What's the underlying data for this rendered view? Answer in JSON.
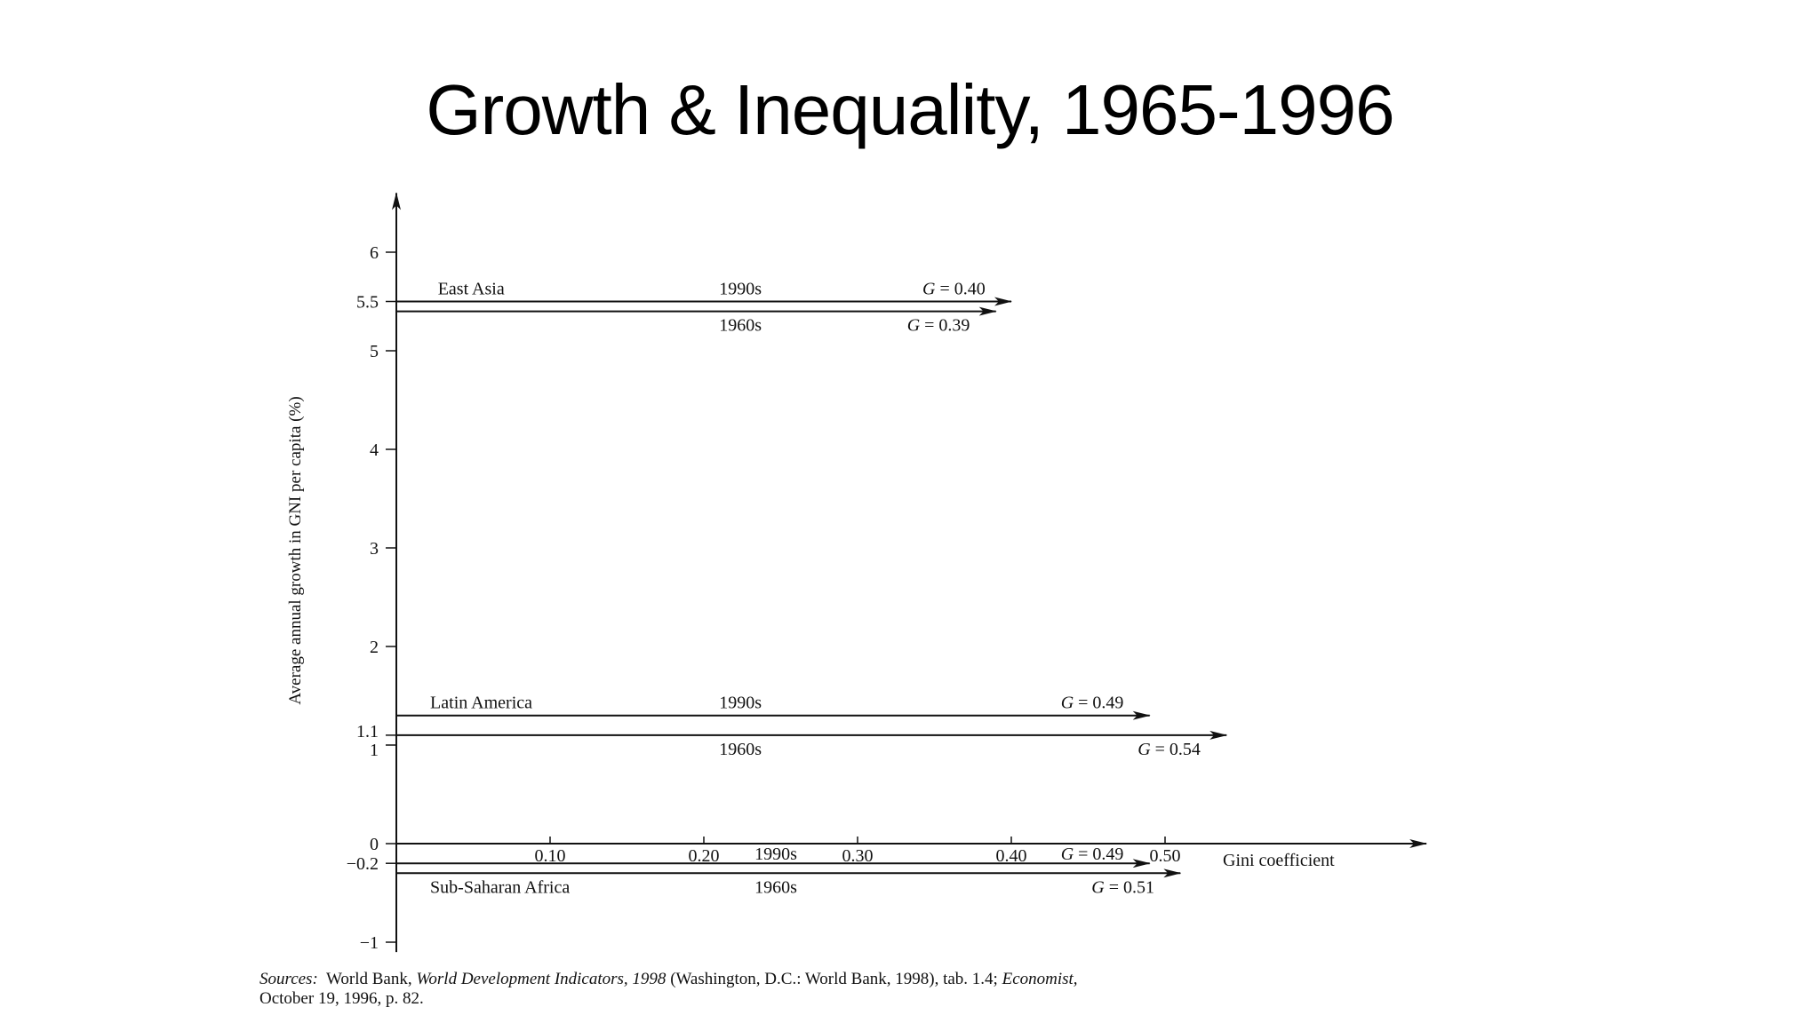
{
  "title": "Growth & Inequality, 1965-1996",
  "chart_data": {
    "type": "line",
    "xlabel": "Gini coefficient",
    "ylabel": "Average annual growth in GNI per capita (%)",
    "x_ticks": [
      "0.10",
      "0.20",
      "0.30",
      "0.40",
      "0.50"
    ],
    "x_tick_values": [
      0.1,
      0.2,
      0.3,
      0.4,
      0.5
    ],
    "y_ticks": [
      "6",
      "5.5",
      "5",
      "4",
      "3",
      "2",
      "1.1",
      "1",
      "0",
      "−0.2",
      "−1"
    ],
    "y_tick_values": [
      6,
      5.5,
      5,
      4,
      3,
      2,
      1.1,
      1,
      0,
      -0.2,
      -1
    ],
    "xlim": [
      0,
      0.67
    ],
    "ylim": [
      -1.1,
      6.6
    ],
    "series": [
      {
        "region": "East Asia",
        "period": "1990s",
        "growth": 5.5,
        "gini": 0.4,
        "g_label": "G = 0.40"
      },
      {
        "region": "East Asia",
        "period": "1960s",
        "growth": 5.4,
        "gini": 0.39,
        "g_label": "G = 0.39"
      },
      {
        "region": "Latin America",
        "period": "1990s",
        "growth": 1.3,
        "gini": 0.49,
        "g_label": "G = 0.49"
      },
      {
        "region": "Latin America",
        "period": "1960s",
        "growth": 1.1,
        "gini": 0.54,
        "g_label": "G = 0.54"
      },
      {
        "region": "Sub-Saharan Africa",
        "period": "1990s",
        "growth": -0.2,
        "gini": 0.49,
        "g_label": "G = 0.49"
      },
      {
        "region": "Sub-Saharan Africa",
        "period": "1960s",
        "growth": -0.3,
        "gini": 0.51,
        "g_label": "G = 0.51"
      }
    ],
    "region_labels": [
      "East Asia",
      "Latin America",
      "Sub-Saharan Africa"
    ]
  },
  "source": {
    "label": "Sources:",
    "part1": "World Bank,",
    "italic1": "World Development Indicators, 1998",
    "part2": "(Washington, D.C.: World Bank, 1998), tab. 1.4;",
    "italic2": "Economist,",
    "part3": "October 19, 1996, p. 82."
  }
}
